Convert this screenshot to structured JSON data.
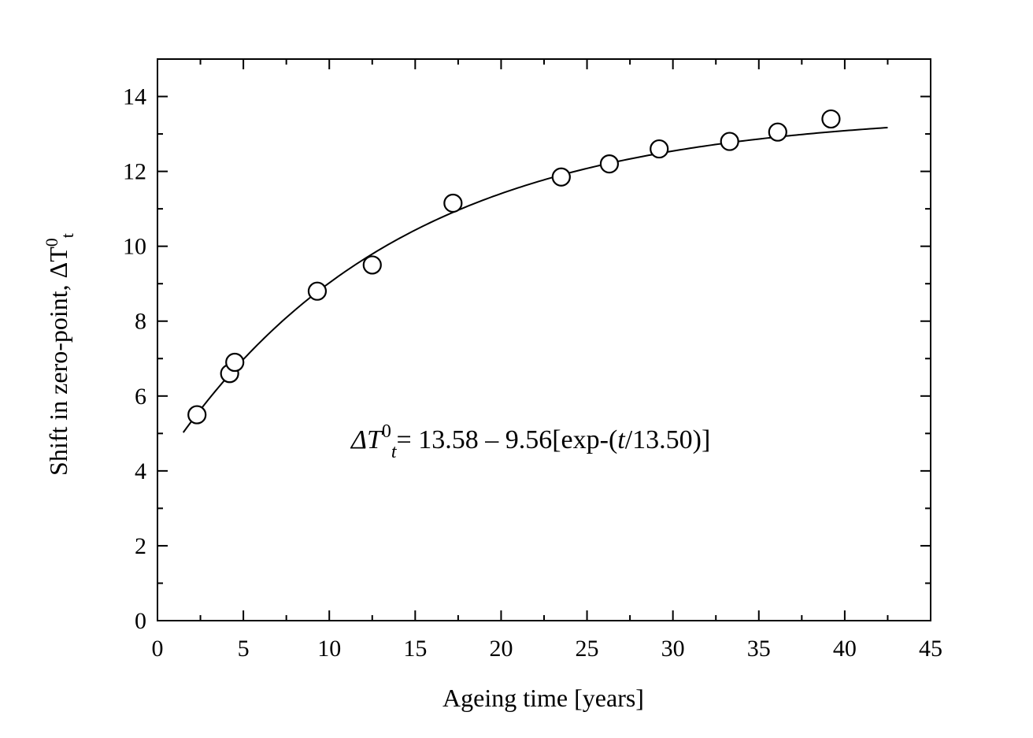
{
  "chart_data": {
    "type": "scatter",
    "xlabel": "Ageing time [years]",
    "ylabel_main": "Shift in zero-point, ",
    "ylabel_delta": "ΔT",
    "ylabel_sup": "0",
    "ylabel_sub": "t",
    "xlim": [
      0,
      45
    ],
    "ylim": [
      0,
      15
    ],
    "x_ticks": [
      0,
      5,
      10,
      15,
      20,
      25,
      30,
      35,
      40,
      45
    ],
    "y_ticks": [
      0,
      2,
      4,
      6,
      8,
      10,
      12,
      14
    ],
    "x_tick_labels": [
      "0",
      "5",
      "10",
      "15",
      "20",
      "25",
      "30",
      "35",
      "40",
      "45"
    ],
    "y_tick_labels": [
      "0",
      "2",
      "4",
      "6",
      "8",
      "10",
      "12",
      "14"
    ],
    "grid": false,
    "legend": "none",
    "series": [
      {
        "marker": "open-circle",
        "points": [
          {
            "x": 2.3,
            "y": 5.5
          },
          {
            "x": 4.2,
            "y": 6.6
          },
          {
            "x": 4.5,
            "y": 6.9
          },
          {
            "x": 9.3,
            "y": 8.8
          },
          {
            "x": 12.5,
            "y": 9.5
          },
          {
            "x": 17.2,
            "y": 11.15
          },
          {
            "x": 23.5,
            "y": 11.85
          },
          {
            "x": 26.3,
            "y": 12.2
          },
          {
            "x": 29.2,
            "y": 12.6
          },
          {
            "x": 33.3,
            "y": 12.8
          },
          {
            "x": 36.1,
            "y": 13.05
          },
          {
            "x": 39.2,
            "y": 13.4
          }
        ]
      }
    ],
    "fit": {
      "a": 13.58,
      "b": 9.56,
      "tau": 13.5,
      "x_range": [
        1.5,
        42.5
      ]
    },
    "annotation": {
      "delta": "ΔT",
      "sup": "0",
      "sub": "t",
      "rest_1": "= 13.58 – 9.56[exp-(",
      "rest_t": "t",
      "rest_2": "/13.50)]"
    }
  }
}
